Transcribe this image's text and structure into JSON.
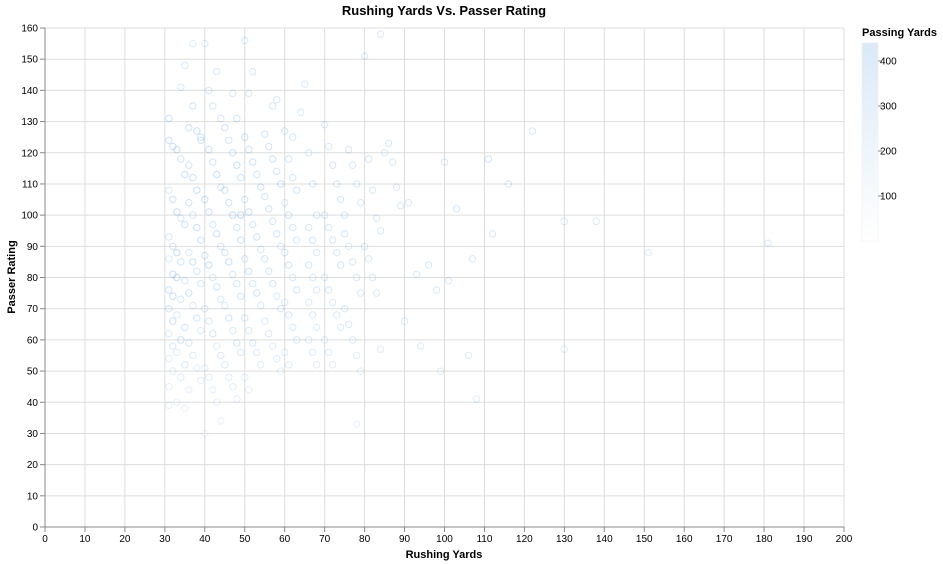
{
  "chart_data": {
    "type": "scatter",
    "title": "Rushing Yards Vs. Passer Rating",
    "xlabel": "Rushing Yards",
    "ylabel": "Passer Rating",
    "xlim": [
      0,
      200
    ],
    "ylim": [
      0,
      160
    ],
    "x_ticks": [
      0,
      10,
      20,
      30,
      40,
      50,
      60,
      70,
      80,
      90,
      100,
      110,
      120,
      130,
      140,
      150,
      160,
      170,
      180,
      190,
      200
    ],
    "y_ticks": [
      0,
      10,
      20,
      30,
      40,
      50,
      60,
      70,
      80,
      90,
      100,
      110,
      120,
      130,
      140,
      150,
      160
    ],
    "grid": true,
    "point_color": "#4c9be8",
    "legend": {
      "title": "Passing Yards",
      "placement": "top-right",
      "type": "gradient",
      "ticks": [
        100,
        200,
        300,
        400
      ],
      "domain": [
        0,
        440
      ],
      "color_low": "#ffffff",
      "color_high": "#dbe9f7"
    },
    "points": [
      [
        31,
        131,
        300
      ],
      [
        31,
        124,
        260
      ],
      [
        32,
        122,
        280
      ],
      [
        33,
        121,
        310
      ],
      [
        34,
        118,
        240
      ],
      [
        35,
        113,
        330
      ],
      [
        31,
        108,
        180
      ],
      [
        32,
        105,
        290
      ],
      [
        33,
        101,
        350
      ],
      [
        34,
        99,
        220
      ],
      [
        35,
        97,
        260
      ],
      [
        31,
        93,
        200
      ],
      [
        32,
        90,
        280
      ],
      [
        33,
        88,
        360
      ],
      [
        31,
        86,
        150
      ],
      [
        34,
        85,
        240
      ],
      [
        32,
        81,
        300
      ],
      [
        33,
        80,
        320
      ],
      [
        35,
        79,
        190
      ],
      [
        31,
        76,
        260
      ],
      [
        32,
        74,
        340
      ],
      [
        34,
        73,
        210
      ],
      [
        31,
        70,
        250
      ],
      [
        33,
        68,
        180
      ],
      [
        32,
        66,
        300
      ],
      [
        35,
        64,
        230
      ],
      [
        31,
        62,
        160
      ],
      [
        34,
        60,
        280
      ],
      [
        32,
        58,
        200
      ],
      [
        33,
        56,
        140
      ],
      [
        31,
        54,
        120
      ],
      [
        35,
        52,
        190
      ],
      [
        32,
        50,
        110
      ],
      [
        34,
        48,
        150
      ],
      [
        31,
        45,
        90
      ],
      [
        33,
        40,
        70
      ],
      [
        35,
        38,
        60
      ],
      [
        31,
        39,
        80
      ],
      [
        36,
        116,
        250
      ],
      [
        37,
        112,
        290
      ],
      [
        38,
        108,
        330
      ],
      [
        36,
        104,
        270
      ],
      [
        37,
        100,
        220
      ],
      [
        38,
        96,
        310
      ],
      [
        39,
        92,
        260
      ],
      [
        36,
        88,
        200
      ],
      [
        37,
        85,
        300
      ],
      [
        38,
        82,
        240
      ],
      [
        39,
        78,
        210
      ],
      [
        36,
        75,
        280
      ],
      [
        37,
        71,
        190
      ],
      [
        38,
        67,
        230
      ],
      [
        39,
        63,
        170
      ],
      [
        36,
        59,
        200
      ],
      [
        37,
        55,
        150
      ],
      [
        38,
        51,
        130
      ],
      [
        39,
        47,
        110
      ],
      [
        36,
        44,
        100
      ],
      [
        37,
        135,
        280
      ],
      [
        38,
        127,
        320
      ],
      [
        39,
        124,
        260
      ],
      [
        36,
        128,
        300
      ],
      [
        35,
        148,
        200
      ],
      [
        34,
        141,
        180
      ],
      [
        37,
        155,
        120
      ],
      [
        40,
        155,
        160
      ],
      [
        39,
        125,
        270
      ],
      [
        41,
        121,
        300
      ],
      [
        42,
        117,
        250
      ],
      [
        43,
        113,
        340
      ],
      [
        44,
        109,
        280
      ],
      [
        40,
        105,
        310
      ],
      [
        41,
        101,
        260
      ],
      [
        42,
        97,
        220
      ],
      [
        43,
        94,
        300
      ],
      [
        44,
        90,
        240
      ],
      [
        40,
        87,
        280
      ],
      [
        41,
        84,
        330
      ],
      [
        42,
        80,
        210
      ],
      [
        43,
        77,
        260
      ],
      [
        44,
        73,
        190
      ],
      [
        40,
        70,
        240
      ],
      [
        41,
        66,
        180
      ],
      [
        42,
        62,
        220
      ],
      [
        43,
        58,
        150
      ],
      [
        44,
        55,
        170
      ],
      [
        40,
        51,
        120
      ],
      [
        41,
        48,
        140
      ],
      [
        42,
        44,
        100
      ],
      [
        43,
        40,
        90
      ],
      [
        44,
        34,
        80
      ],
      [
        40,
        30,
        60
      ],
      [
        41,
        140,
        220
      ],
      [
        43,
        146,
        180
      ],
      [
        42,
        135,
        200
      ],
      [
        44,
        131,
        240
      ],
      [
        45,
        128,
        300
      ],
      [
        46,
        124,
        260
      ],
      [
        47,
        120,
        280
      ],
      [
        48,
        116,
        330
      ],
      [
        49,
        112,
        250
      ],
      [
        45,
        108,
        310
      ],
      [
        46,
        104,
        270
      ],
      [
        47,
        100,
        360
      ],
      [
        48,
        96,
        230
      ],
      [
        49,
        92,
        290
      ],
      [
        45,
        88,
        260
      ],
      [
        46,
        85,
        320
      ],
      [
        47,
        81,
        210
      ],
      [
        48,
        78,
        270
      ],
      [
        49,
        74,
        240
      ],
      [
        45,
        71,
        200
      ],
      [
        46,
        67,
        260
      ],
      [
        47,
        63,
        190
      ],
      [
        48,
        59,
        230
      ],
      [
        49,
        56,
        170
      ],
      [
        45,
        52,
        150
      ],
      [
        46,
        48,
        130
      ],
      [
        47,
        45,
        110
      ],
      [
        48,
        41,
        90
      ],
      [
        49,
        100,
        420
      ],
      [
        50,
        125,
        300
      ],
      [
        51,
        121,
        260
      ],
      [
        52,
        117,
        280
      ],
      [
        53,
        113,
        240
      ],
      [
        54,
        109,
        310
      ],
      [
        50,
        105,
        260
      ],
      [
        51,
        101,
        300
      ],
      [
        52,
        97,
        230
      ],
      [
        53,
        93,
        270
      ],
      [
        54,
        89,
        210
      ],
      [
        50,
        86,
        260
      ],
      [
        51,
        82,
        300
      ],
      [
        52,
        78,
        240
      ],
      [
        53,
        75,
        280
      ],
      [
        54,
        71,
        200
      ],
      [
        50,
        67,
        230
      ],
      [
        51,
        63,
        180
      ],
      [
        52,
        59,
        210
      ],
      [
        53,
        56,
        160
      ],
      [
        54,
        52,
        140
      ],
      [
        50,
        48,
        120
      ],
      [
        51,
        44,
        100
      ],
      [
        50,
        156,
        200
      ],
      [
        52,
        146,
        220
      ],
      [
        51,
        139,
        180
      ],
      [
        47,
        139,
        200
      ],
      [
        48,
        131,
        240
      ],
      [
        55,
        126,
        260
      ],
      [
        56,
        122,
        230
      ],
      [
        57,
        118,
        280
      ],
      [
        58,
        114,
        250
      ],
      [
        59,
        110,
        300
      ],
      [
        55,
        106,
        240
      ],
      [
        56,
        102,
        270
      ],
      [
        57,
        98,
        220
      ],
      [
        58,
        94,
        260
      ],
      [
        59,
        90,
        210
      ],
      [
        55,
        86,
        250
      ],
      [
        56,
        82,
        200
      ],
      [
        57,
        78,
        240
      ],
      [
        58,
        74,
        190
      ],
      [
        59,
        70,
        220
      ],
      [
        55,
        66,
        170
      ],
      [
        56,
        62,
        200
      ],
      [
        57,
        58,
        150
      ],
      [
        58,
        54,
        130
      ],
      [
        59,
        50,
        110
      ],
      [
        57,
        135,
        220
      ],
      [
        58,
        137,
        200
      ],
      [
        60,
        127,
        240
      ],
      [
        61,
        118,
        230
      ],
      [
        62,
        112,
        250
      ],
      [
        63,
        108,
        260
      ],
      [
        60,
        104,
        220
      ],
      [
        61,
        100,
        280
      ],
      [
        62,
        96,
        240
      ],
      [
        63,
        92,
        200
      ],
      [
        60,
        88,
        230
      ],
      [
        61,
        84,
        260
      ],
      [
        62,
        80,
        210
      ],
      [
        63,
        76,
        240
      ],
      [
        60,
        72,
        190
      ],
      [
        61,
        68,
        220
      ],
      [
        62,
        64,
        170
      ],
      [
        63,
        60,
        200
      ],
      [
        60,
        56,
        150
      ],
      [
        61,
        52,
        130
      ],
      [
        64,
        133,
        200
      ],
      [
        65,
        142,
        160
      ],
      [
        62,
        125,
        220
      ],
      [
        66,
        120,
        200
      ],
      [
        67,
        110,
        230
      ],
      [
        68,
        100,
        240
      ],
      [
        66,
        96,
        210
      ],
      [
        67,
        92,
        260
      ],
      [
        68,
        88,
        200
      ],
      [
        66,
        84,
        230
      ],
      [
        67,
        80,
        180
      ],
      [
        68,
        76,
        210
      ],
      [
        66,
        72,
        170
      ],
      [
        67,
        68,
        200
      ],
      [
        68,
        64,
        160
      ],
      [
        66,
        60,
        190
      ],
      [
        67,
        56,
        140
      ],
      [
        68,
        52,
        120
      ],
      [
        70,
        129,
        220
      ],
      [
        71,
        122,
        200
      ],
      [
        72,
        116,
        230
      ],
      [
        73,
        110,
        250
      ],
      [
        74,
        105,
        220
      ],
      [
        70,
        100,
        260
      ],
      [
        71,
        96,
        210
      ],
      [
        72,
        92,
        240
      ],
      [
        73,
        88,
        200
      ],
      [
        74,
        84,
        230
      ],
      [
        70,
        80,
        190
      ],
      [
        71,
        76,
        220
      ],
      [
        72,
        72,
        180
      ],
      [
        73,
        68,
        200
      ],
      [
        74,
        64,
        160
      ],
      [
        70,
        60,
        180
      ],
      [
        71,
        56,
        140
      ],
      [
        72,
        52,
        120
      ],
      [
        75,
        100,
        240
      ],
      [
        76,
        121,
        220
      ],
      [
        77,
        116,
        200
      ],
      [
        78,
        110,
        230
      ],
      [
        79,
        104,
        210
      ],
      [
        75,
        94,
        240
      ],
      [
        76,
        90,
        200
      ],
      [
        77,
        85,
        220
      ],
      [
        78,
        80,
        190
      ],
      [
        79,
        75,
        210
      ],
      [
        75,
        70,
        180
      ],
      [
        76,
        65,
        200
      ],
      [
        77,
        60,
        160
      ],
      [
        78,
        55,
        140
      ],
      [
        79,
        50,
        120
      ],
      [
        78,
        33,
        100
      ],
      [
        80,
        151,
        220
      ],
      [
        81,
        118,
        210
      ],
      [
        82,
        108,
        200
      ],
      [
        83,
        99,
        220
      ],
      [
        84,
        95,
        200
      ],
      [
        80,
        90,
        210
      ],
      [
        81,
        86,
        180
      ],
      [
        82,
        80,
        200
      ],
      [
        83,
        75,
        170
      ],
      [
        84,
        57,
        150
      ],
      [
        85,
        120,
        200
      ],
      [
        86,
        123,
        190
      ],
      [
        87,
        117,
        210
      ],
      [
        88,
        109,
        200
      ],
      [
        89,
        103,
        220
      ],
      [
        90,
        66,
        160
      ],
      [
        91,
        104,
        200
      ],
      [
        93,
        81,
        190
      ],
      [
        94,
        58,
        160
      ],
      [
        96,
        84,
        210
      ],
      [
        98,
        76,
        190
      ],
      [
        99,
        50,
        150
      ],
      [
        100,
        117,
        230
      ],
      [
        101,
        79,
        200
      ],
      [
        103,
        102,
        220
      ],
      [
        106,
        55,
        160
      ],
      [
        107,
        86,
        210
      ],
      [
        108,
        41,
        120
      ],
      [
        111,
        118,
        230
      ],
      [
        112,
        94,
        220
      ],
      [
        116,
        110,
        240
      ],
      [
        122,
        127,
        220
      ],
      [
        130,
        98,
        200
      ],
      [
        130,
        57,
        140
      ],
      [
        138,
        98,
        190
      ],
      [
        151,
        88,
        150
      ],
      [
        181,
        91,
        200
      ],
      [
        84,
        158,
        180
      ]
    ]
  }
}
